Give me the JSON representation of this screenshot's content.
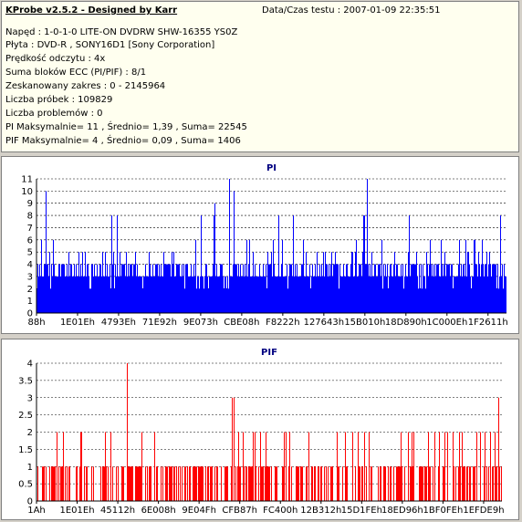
{
  "info": {
    "app_title": "KProbe v2.5.2 - Designed by Karr",
    "date_label": "Data/Czas testu : 2007-01-09 22:35:51",
    "lines": [
      "Napęd : 1-0-1-0 LITE-ON DVDRW SHW-16355  YS0Z",
      "Płyta : DVD-R , SONY16D1 [Sony Corporation]",
      "Prędkość odczytu : 4x",
      "Suma bloków ECC (PI/PIF) : 8/1",
      "Zeskanowany zakres : 0 - 2145964",
      "Liczba próbek : 109829",
      "Liczba problemów : 0",
      "PI Maksymalnie= 11 , Średnio= 1,39 , Suma= 22545",
      "PIF Maksymalnie= 4 , Średnio= 0,09 , Suma= 1406"
    ]
  },
  "chart_data": [
    {
      "type": "bar",
      "title": "PI",
      "color": "#0000ff",
      "ylim": [
        0,
        11
      ],
      "yticks": [
        0,
        1,
        2,
        3,
        4,
        5,
        6,
        7,
        8,
        9,
        10,
        11
      ],
      "xtick_labels": [
        "88h",
        "1E01Eh",
        "4793Eh",
        "71E92h",
        "9E073h",
        "CBE08h",
        "F8222h",
        "127643h",
        "15B010h",
        "18D890h",
        "1C000Eh",
        "1F2611h"
      ],
      "baseline_typical": 3,
      "envelope_typical_max": 6,
      "peaks": [
        {
          "pos": 0.02,
          "value": 10
        },
        {
          "pos": 0.41,
          "value": 11
        },
        {
          "pos": 0.42,
          "value": 10
        },
        {
          "pos": 0.705,
          "value": 11
        },
        {
          "pos": 0.38,
          "value": 9
        },
        {
          "pos": 0.16,
          "value": 8
        },
        {
          "pos": 0.35,
          "value": 8
        }
      ],
      "grid": true
    },
    {
      "type": "bar",
      "title": "PIF",
      "color": "#ff0000",
      "ylim": [
        0,
        4
      ],
      "yticks": [
        0,
        0.5,
        1,
        1.5,
        2,
        2.5,
        3,
        3.5,
        4
      ],
      "xtick_labels": [
        "1Ah",
        "1E01Eh",
        "45112h",
        "6E008h",
        "9E04Fh",
        "CFB87h",
        "FC400h",
        "12B312h",
        "15D1FEh",
        "18ED96h",
        "1BF0FEh",
        "1EFDE9h"
      ],
      "peaks": [
        {
          "pos": 0.195,
          "value": 4
        },
        {
          "pos": 0.42,
          "value": 3
        },
        {
          "pos": 0.425,
          "value": 3
        },
        {
          "pos": 0.995,
          "value": 3
        }
      ],
      "grid": true
    }
  ]
}
